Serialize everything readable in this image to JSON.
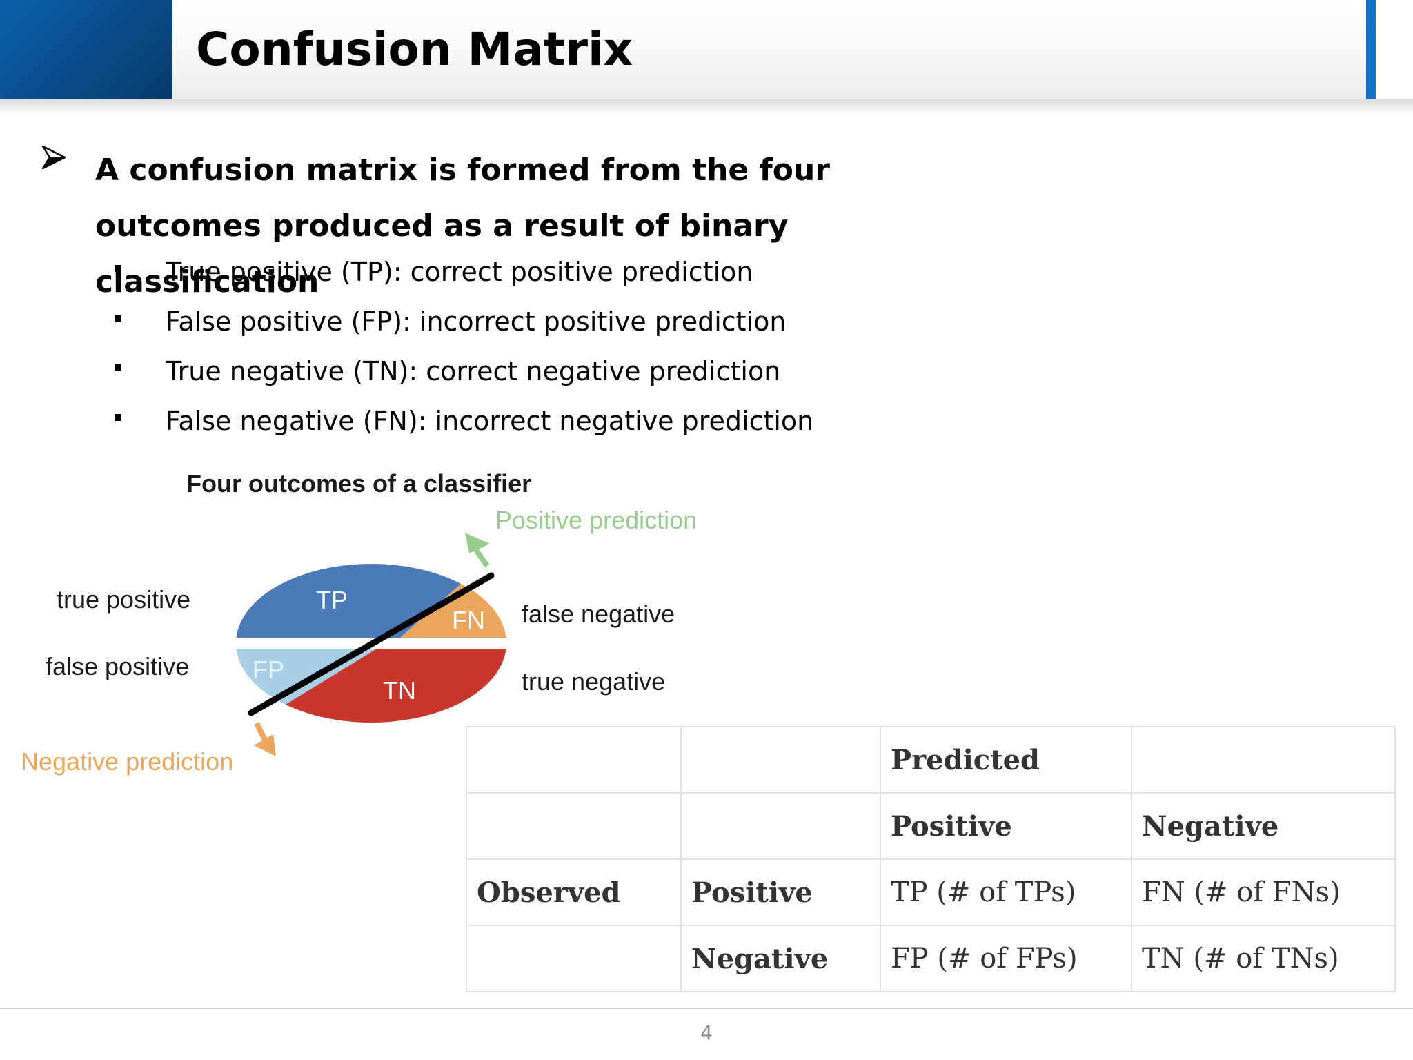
{
  "slide": {
    "title": "Confusion Matrix",
    "page_number": "4"
  },
  "bullets": {
    "main": "A confusion matrix is formed from the four outcomes produced as a result of binary classification",
    "items": [
      "True positive (TP): correct positive prediction",
      "False positive (FP): incorrect positive prediction",
      "True negative (TN): correct negative prediction",
      "False negative (FN): incorrect negative prediction"
    ]
  },
  "figure": {
    "title": "Four outcomes of a classifier",
    "positive_prediction": "Positive prediction",
    "negative_prediction": "Negative prediction",
    "labels": {
      "true_positive": "true positive",
      "false_positive": "false positive",
      "false_negative": "false negative",
      "true_negative": "true negative"
    },
    "regions": {
      "tp": "TP",
      "fn": "FN",
      "fp": "FP",
      "tn": "TN"
    },
    "colors": {
      "tp": "#4a7ab7",
      "fn": "#eaa65c",
      "fp": "#a8cfe6",
      "tn": "#c9362b",
      "positive_arrow": "#98cd8e",
      "negative_arrow": "#eaa65c"
    }
  },
  "table": {
    "rows": [
      [
        "",
        "",
        "Predicted",
        ""
      ],
      [
        "",
        "",
        "Positive",
        "Negative"
      ],
      [
        "Observed",
        "Positive",
        "TP (# of TPs)",
        "FN (# of FNs)"
      ],
      [
        "",
        "Negative",
        "FP (# of FPs)",
        "TN (# of TNs)"
      ]
    ]
  }
}
